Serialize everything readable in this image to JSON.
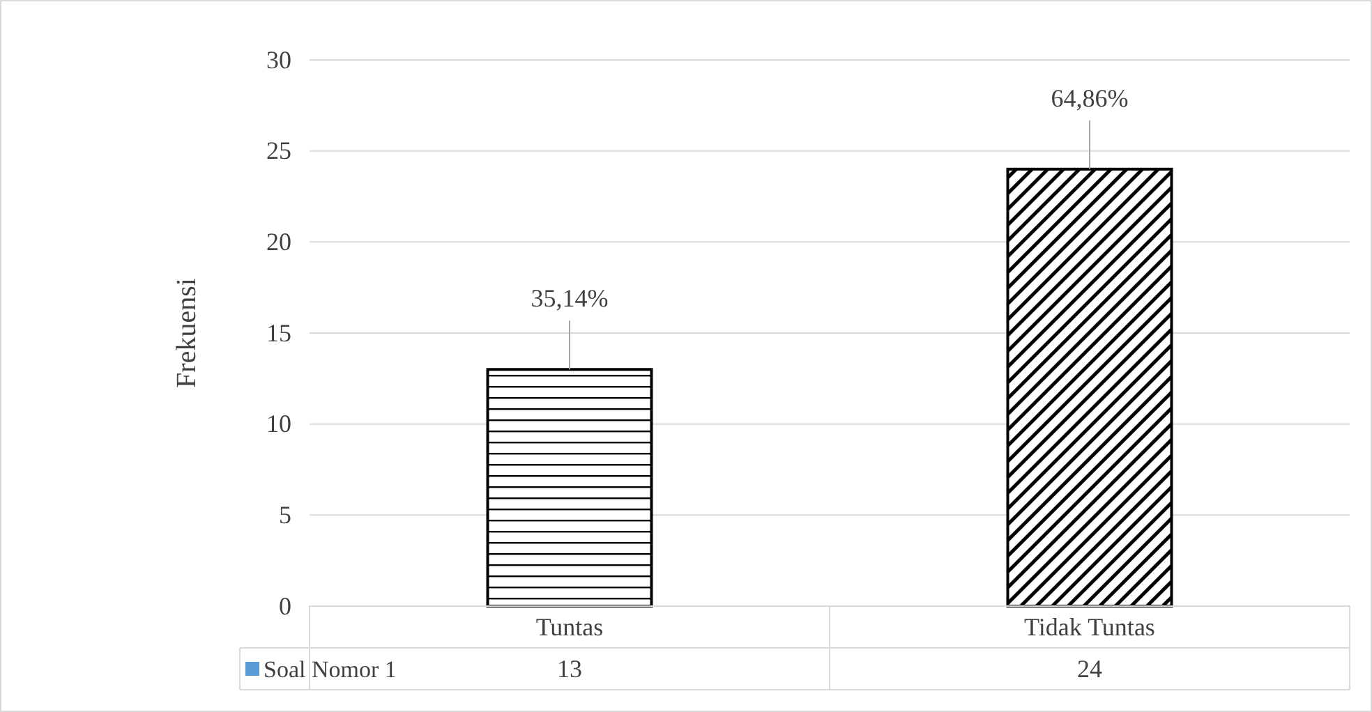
{
  "chart_data": {
    "type": "bar",
    "ylabel": "Frekuensi",
    "categories": [
      "Tuntas",
      "Tidak Tuntas"
    ],
    "series": [
      {
        "name": "Soal Nomor 1",
        "color": "#5b9bd5",
        "colors": [
          "#000000",
          "#000000"
        ],
        "values": [
          13,
          24
        ]
      }
    ],
    "annotations": [
      {
        "text": "35,14%",
        "x": "Tuntas",
        "y": 13
      },
      {
        "text": "64,86%",
        "x": "Tidak Tuntas",
        "y": 24
      }
    ],
    "ylim": [
      0,
      30
    ],
    "yticks": [
      0,
      5,
      10,
      15,
      20,
      25,
      30
    ],
    "grid": "y",
    "data_labels": true
  }
}
